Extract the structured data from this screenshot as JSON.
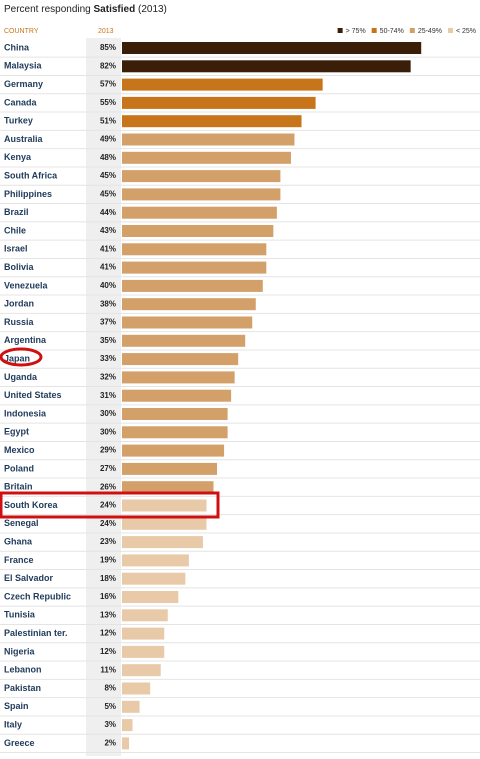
{
  "chart_data": {
    "type": "bar",
    "title": [
      "Percent responding",
      "Satisfied",
      "(2013)"
    ],
    "category_header": "COUNTRY",
    "value_header": "2013",
    "legend": [
      {
        "name": "> 75%",
        "color": "#3b1e08"
      },
      {
        "name": "50-74%",
        "color": "#c8741a"
      },
      {
        "name": "25-49%",
        "color": "#d3a06a"
      },
      {
        "name": "< 25%",
        "color": "#e8caa9"
      }
    ],
    "categories": [
      "China",
      "Malaysia",
      "Germany",
      "Canada",
      "Turkey",
      "Australia",
      "Kenya",
      "South Africa",
      "Philippines",
      "Brazil",
      "Chile",
      "Israel",
      "Bolivia",
      "Venezuela",
      "Jordan",
      "Russia",
      "Argentina",
      "Japan",
      "Uganda",
      "United States",
      "Indonesia",
      "Egypt",
      "Mexico",
      "Poland",
      "Britain",
      "South Korea",
      "Senegal",
      "Ghana",
      "France",
      "El Salvador",
      "Czech Republic",
      "Tunisia",
      "Palestinian ter.",
      "Nigeria",
      "Lebanon",
      "Pakistan",
      "Spain",
      "Italy",
      "Greece"
    ],
    "values": [
      85,
      82,
      57,
      55,
      51,
      49,
      48,
      45,
      45,
      44,
      43,
      41,
      41,
      40,
      38,
      37,
      35,
      33,
      32,
      31,
      30,
      30,
      29,
      27,
      26,
      24,
      24,
      23,
      19,
      18,
      16,
      13,
      12,
      12,
      11,
      8,
      5,
      3,
      2
    ],
    "value_labels": [
      "85%",
      "82%",
      "57%",
      "55%",
      "51%",
      "49%",
      "48%",
      "45%",
      "45%",
      "44%",
      "43%",
      "41%",
      "41%",
      "40%",
      "38%",
      "37%",
      "35%",
      "33%",
      "32%",
      "31%",
      "30%",
      "30%",
      "29%",
      "27%",
      "26%",
      "24%",
      "24%",
      "23%",
      "19%",
      "18%",
      "16%",
      "13%",
      "12%",
      "12%",
      "11%",
      "8%",
      "5%",
      "3%",
      "2%"
    ],
    "colors": [
      "#3b1e08",
      "#3b1e08",
      "#c8741a",
      "#c8741a",
      "#c8741a",
      "#d3a06a",
      "#d3a06a",
      "#d3a06a",
      "#d3a06a",
      "#d3a06a",
      "#d3a06a",
      "#d3a06a",
      "#d3a06a",
      "#d3a06a",
      "#d3a06a",
      "#d3a06a",
      "#d3a06a",
      "#d3a06a",
      "#d3a06a",
      "#d3a06a",
      "#d3a06a",
      "#d3a06a",
      "#d3a06a",
      "#d3a06a",
      "#d3a06a",
      "#e8caa9",
      "#e8caa9",
      "#e8caa9",
      "#e8caa9",
      "#e8caa9",
      "#e8caa9",
      "#e8caa9",
      "#e8caa9",
      "#e8caa9",
      "#e8caa9",
      "#e8caa9",
      "#e8caa9",
      "#e8caa9",
      "#e8caa9"
    ],
    "xlim": [
      0,
      100
    ]
  }
}
